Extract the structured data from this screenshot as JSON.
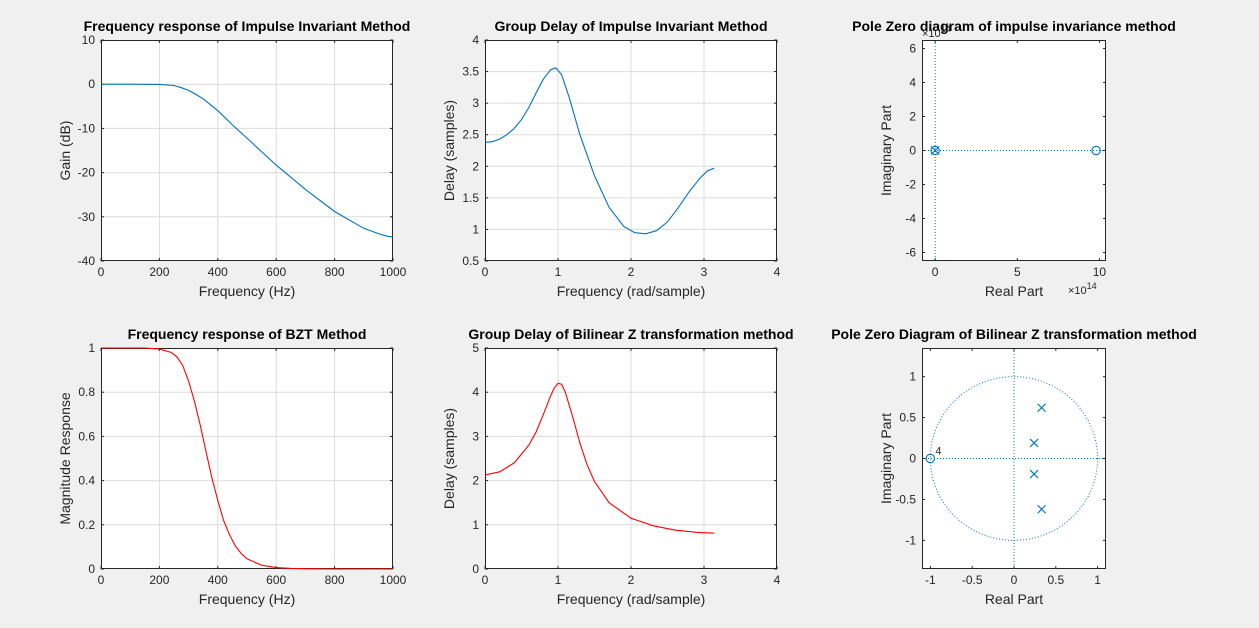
{
  "figure": {
    "background": "#f0f0f0",
    "colors": {
      "blue": "#0072bd",
      "red": "#ff0000",
      "grid": "#dcdcdc",
      "axis": "#262626"
    }
  },
  "chart_data": [
    {
      "id": "p1",
      "type": "line",
      "title": "Frequency response of Impulse Invariant Method",
      "xlabel": "Frequency (Hz)",
      "ylabel": "Gain (dB)",
      "xlim": [
        0,
        1000
      ],
      "ylim": [
        -40,
        10
      ],
      "xticks": [
        0,
        200,
        400,
        600,
        800,
        1000
      ],
      "yticks": [
        -40,
        -30,
        -20,
        -10,
        0,
        10
      ],
      "grid": true,
      "series": [
        {
          "color": "#0072bd",
          "x": [
            0,
            100,
            200,
            250,
            275,
            300,
            325,
            350,
            400,
            450,
            500,
            600,
            700,
            800,
            900,
            950,
            980,
            1000
          ],
          "y": [
            0,
            0,
            -0.05,
            -0.3,
            -0.8,
            -1.4,
            -2.3,
            -3.3,
            -6.0,
            -9.2,
            -12.2,
            -18.3,
            -23.8,
            -28.8,
            -32.6,
            -33.8,
            -34.4,
            -34.6
          ]
        }
      ]
    },
    {
      "id": "p2",
      "type": "line",
      "title": "Group Delay of Impulse Invariant Method",
      "xlabel": "Frequency (rad/sample)",
      "ylabel": "Delay (samples)",
      "xlim": [
        0,
        4
      ],
      "ylim": [
        0.5,
        4
      ],
      "xticks": [
        0,
        1,
        2,
        3,
        4
      ],
      "yticks": [
        0.5,
        1,
        1.5,
        2,
        2.5,
        3,
        3.5,
        4
      ],
      "grid": true,
      "series": [
        {
          "color": "#0072bd",
          "x": [
            0,
            0.1,
            0.2,
            0.3,
            0.4,
            0.5,
            0.6,
            0.7,
            0.8,
            0.9,
            0.97,
            1.05,
            1.15,
            1.3,
            1.5,
            1.7,
            1.9,
            2.05,
            2.2,
            2.35,
            2.5,
            2.65,
            2.8,
            2.95,
            3.05,
            3.14
          ],
          "y": [
            2.38,
            2.39,
            2.43,
            2.5,
            2.6,
            2.74,
            2.93,
            3.16,
            3.38,
            3.53,
            3.56,
            3.45,
            3.1,
            2.5,
            1.85,
            1.35,
            1.05,
            0.95,
            0.93,
            0.98,
            1.12,
            1.35,
            1.6,
            1.82,
            1.93,
            1.97
          ]
        }
      ]
    },
    {
      "id": "p3",
      "type": "scatter",
      "title": "Pole Zero diagram of impulse invariance method",
      "xlabel": "Real Part",
      "ylabel": "Imaginary Part",
      "xlim": [
        -0.8,
        10.4
      ],
      "ylim": [
        -6.5,
        6.5
      ],
      "xticks": [
        0,
        5,
        10
      ],
      "yticks": [
        -6,
        -4,
        -2,
        0,
        2,
        4,
        6
      ],
      "grid": false,
      "x_exponent_label": "×10",
      "x_exponent": "14",
      "y_exponent_label": "×10",
      "y_exponent": "14",
      "zeros": [
        [
          0,
          0
        ],
        [
          9.8,
          0
        ]
      ],
      "poles": [
        [
          0,
          0
        ]
      ],
      "color": "#0072bd"
    },
    {
      "id": "p4",
      "type": "line",
      "title": "Frequency response of BZT Method",
      "xlabel": "Frequency (Hz)",
      "ylabel": "Magnitude Response",
      "xlim": [
        0,
        1000
      ],
      "ylim": [
        0,
        1
      ],
      "xticks": [
        0,
        200,
        400,
        600,
        800,
        1000
      ],
      "yticks": [
        0,
        0.2,
        0.4,
        0.6,
        0.8,
        1
      ],
      "grid": true,
      "series": [
        {
          "color": "#ff0000",
          "x": [
            0,
            150,
            200,
            240,
            260,
            280,
            300,
            320,
            340,
            360,
            380,
            400,
            420,
            440,
            460,
            480,
            500,
            550,
            600,
            650,
            700,
            800,
            1000
          ],
          "y": [
            1,
            1,
            0.995,
            0.98,
            0.96,
            0.92,
            0.85,
            0.76,
            0.65,
            0.53,
            0.41,
            0.31,
            0.22,
            0.155,
            0.105,
            0.07,
            0.046,
            0.017,
            0.0065,
            0.0025,
            0.001,
            0.0002,
            0
          ]
        }
      ]
    },
    {
      "id": "p5",
      "type": "line",
      "title": "Group Delay of Bilinear Z transformation method",
      "xlabel": "Frequency (rad/sample)",
      "ylabel": "Delay (samples)",
      "xlim": [
        0,
        4
      ],
      "ylim": [
        0,
        5
      ],
      "xticks": [
        0,
        1,
        2,
        3,
        4
      ],
      "yticks": [
        0,
        1,
        2,
        3,
        4,
        5
      ],
      "grid": true,
      "series": [
        {
          "color": "#ff0000",
          "x": [
            0,
            0.2,
            0.4,
            0.6,
            0.7,
            0.8,
            0.9,
            0.95,
            1.0,
            1.05,
            1.1,
            1.2,
            1.3,
            1.4,
            1.5,
            1.7,
            2.0,
            2.3,
            2.6,
            2.9,
            3.14
          ],
          "y": [
            2.13,
            2.2,
            2.4,
            2.8,
            3.1,
            3.5,
            3.92,
            4.1,
            4.2,
            4.18,
            4.0,
            3.45,
            2.85,
            2.35,
            1.98,
            1.5,
            1.15,
            0.98,
            0.88,
            0.83,
            0.81
          ]
        }
      ]
    },
    {
      "id": "p6",
      "type": "scatter",
      "title": "Pole Zero Diagram of Bilinear Z transformation method",
      "xlabel": "Real Part",
      "ylabel": "Imaginary Part",
      "xlim": [
        -1.1,
        1.1
      ],
      "ylim": [
        -1.35,
        1.35
      ],
      "xticks": [
        -1,
        -0.5,
        0,
        0.5,
        1
      ],
      "yticks": [
        -1,
        -0.5,
        0,
        0.5,
        1
      ],
      "grid": false,
      "unit_circle": true,
      "zeros": [
        [
          -1,
          0
        ]
      ],
      "zero_multiplicity": "4",
      "poles": [
        [
          0.33,
          0.62
        ],
        [
          0.24,
          0.19
        ],
        [
          0.24,
          -0.19
        ],
        [
          0.33,
          -0.62
        ]
      ],
      "color": "#0072bd"
    }
  ]
}
